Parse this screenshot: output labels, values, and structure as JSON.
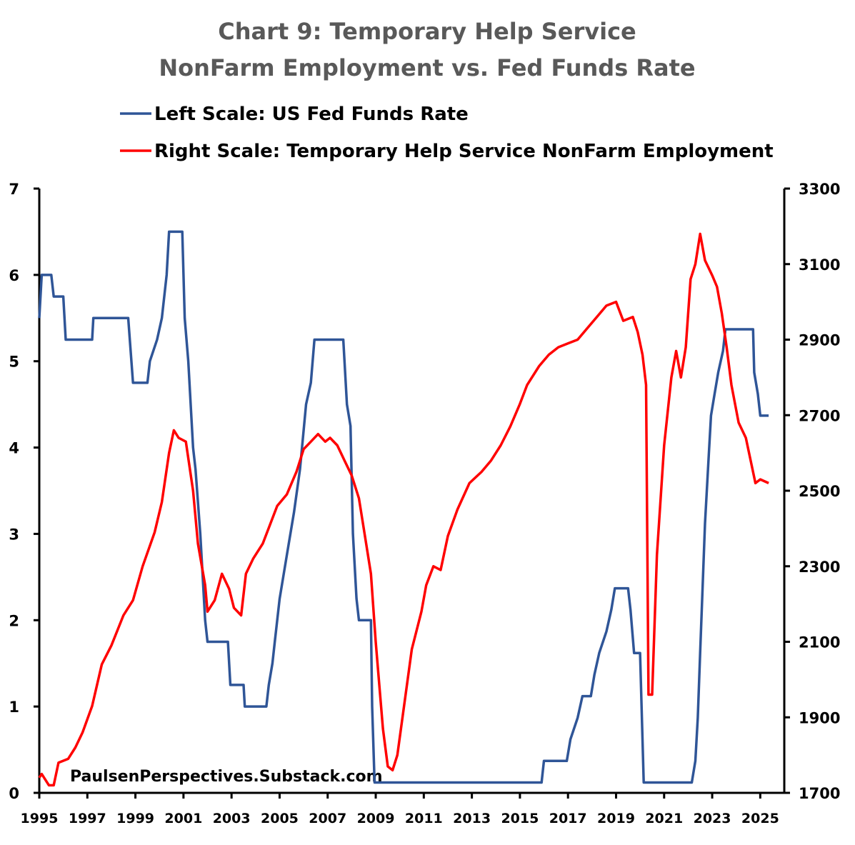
{
  "chart_data": {
    "type": "line",
    "title": [
      "Chart 9: Temporary Help Service",
      "NonFarm Employment vs. Fed Funds Rate"
    ],
    "annotation": "PaulsenPerspectives.Substack.com",
    "xlim": [
      1995,
      2026
    ],
    "xticks": [
      1995,
      1997,
      1999,
      2001,
      2003,
      2005,
      2007,
      2009,
      2011,
      2013,
      2015,
      2017,
      2019,
      2021,
      2023,
      2025
    ],
    "ylim": [
      0,
      7
    ],
    "yticks": [
      0,
      1,
      2,
      3,
      4,
      5,
      6,
      7
    ],
    "y2lim": [
      1700,
      3300
    ],
    "y2ticks": [
      1700,
      1900,
      2100,
      2300,
      2500,
      2700,
      2900,
      3100,
      3300
    ],
    "grid": false,
    "series": [
      {
        "name": "Left Scale: US Fed Funds Rate",
        "color": "#2f5597",
        "axis": "y",
        "x": [
          1995.0,
          1995.1,
          1995.5,
          1995.6,
          1996.0,
          1996.1,
          1997.2,
          1997.25,
          1998.7,
          1998.9,
          1999.5,
          1999.6,
          1999.9,
          2000.1,
          2000.3,
          2000.4,
          2000.95,
          2001.05,
          2001.2,
          2001.4,
          2001.5,
          2001.7,
          2001.9,
          2002.0,
          2002.85,
          2002.95,
          2003.5,
          2003.55,
          2004.45,
          2004.55,
          2004.7,
          2004.8,
          2005.0,
          2005.3,
          2005.6,
          2005.85,
          2006.1,
          2006.3,
          2006.45,
          2007.65,
          2007.8,
          2007.95,
          2008.05,
          2008.2,
          2008.3,
          2008.8,
          2008.85,
          2008.95,
          2015.9,
          2016.0,
          2016.95,
          2017.1,
          2017.4,
          2017.6,
          2017.95,
          2018.1,
          2018.3,
          2018.6,
          2018.8,
          2018.95,
          2019.5,
          2019.6,
          2019.75,
          2020.0,
          2020.15,
          2022.15,
          2022.3,
          2022.4,
          2022.5,
          2022.6,
          2022.7,
          2022.85,
          2022.95,
          2023.1,
          2023.25,
          2023.45,
          2023.55,
          2024.7,
          2024.75,
          2024.9,
          2025.0,
          2025.35
        ],
        "values": [
          5.5,
          6.0,
          6.0,
          5.75,
          5.75,
          5.25,
          5.25,
          5.5,
          5.5,
          4.75,
          4.75,
          5.0,
          5.25,
          5.5,
          6.0,
          6.5,
          6.5,
          5.5,
          5.0,
          4.0,
          3.75,
          3.0,
          2.0,
          1.75,
          1.75,
          1.25,
          1.25,
          1.0,
          1.0,
          1.25,
          1.5,
          1.75,
          2.25,
          2.75,
          3.25,
          3.75,
          4.5,
          4.75,
          5.25,
          5.25,
          4.5,
          4.25,
          3.0,
          2.25,
          2.0,
          2.0,
          1.0,
          0.12,
          0.12,
          0.37,
          0.37,
          0.62,
          0.87,
          1.12,
          1.12,
          1.37,
          1.62,
          1.87,
          2.12,
          2.37,
          2.37,
          2.12,
          1.62,
          1.62,
          0.12,
          0.12,
          0.37,
          0.87,
          1.62,
          2.37,
          3.12,
          3.87,
          4.37,
          4.62,
          4.87,
          5.12,
          5.37,
          5.37,
          4.87,
          4.62,
          4.37,
          4.37
        ]
      },
      {
        "name": "Right Scale: Temporary Help Service NonFarm Employment",
        "color": "#ff0000",
        "axis": "y2",
        "x": [
          1995.0,
          1995.1,
          1995.4,
          1995.6,
          1995.8,
          1996.2,
          1996.5,
          1996.8,
          1997.2,
          1997.6,
          1998.0,
          1998.5,
          1998.9,
          1999.3,
          1999.8,
          2000.1,
          2000.4,
          2000.6,
          2000.8,
          2001.1,
          2001.4,
          2001.6,
          2001.9,
          2002.0,
          2002.3,
          2002.6,
          2002.9,
          2003.1,
          2003.4,
          2003.6,
          2003.9,
          2004.3,
          2004.6,
          2004.9,
          2005.3,
          2005.7,
          2006.0,
          2006.3,
          2006.6,
          2006.9,
          2007.1,
          2007.4,
          2007.7,
          2008.0,
          2008.3,
          2008.6,
          2008.8,
          2009.0,
          2009.3,
          2009.5,
          2009.7,
          2009.9,
          2010.2,
          2010.5,
          2010.9,
          2011.1,
          2011.4,
          2011.7,
          2012.0,
          2012.4,
          2012.9,
          2013.4,
          2013.8,
          2014.2,
          2014.6,
          2015.0,
          2015.3,
          2015.8,
          2016.2,
          2016.6,
          2017.0,
          2017.4,
          2017.8,
          2018.2,
          2018.6,
          2019.0,
          2019.3,
          2019.7,
          2019.9,
          2020.1,
          2020.25,
          2020.35,
          2020.5,
          2020.7,
          2021.0,
          2021.3,
          2021.5,
          2021.7,
          2021.9,
          2022.1,
          2022.3,
          2022.5,
          2022.7,
          2023.0,
          2023.2,
          2023.4,
          2023.6,
          2023.8,
          2024.1,
          2024.4,
          2024.6,
          2024.8,
          2025.0,
          2025.35
        ],
        "values": [
          1740,
          1750,
          1720,
          1720,
          1780,
          1790,
          1820,
          1860,
          1930,
          2040,
          2090,
          2170,
          2210,
          2300,
          2390,
          2470,
          2600,
          2660,
          2640,
          2630,
          2500,
          2360,
          2250,
          2180,
          2210,
          2280,
          2240,
          2190,
          2170,
          2280,
          2320,
          2360,
          2410,
          2460,
          2490,
          2550,
          2610,
          2630,
          2650,
          2630,
          2640,
          2620,
          2580,
          2540,
          2480,
          2360,
          2280,
          2100,
          1870,
          1770,
          1760,
          1800,
          1940,
          2080,
          2180,
          2250,
          2300,
          2290,
          2380,
          2450,
          2520,
          2550,
          2580,
          2620,
          2670,
          2730,
          2780,
          2830,
          2860,
          2880,
          2890,
          2900,
          2930,
          2960,
          2990,
          3000,
          2950,
          2960,
          2920,
          2860,
          2780,
          1960,
          1960,
          2330,
          2620,
          2800,
          2870,
          2800,
          2880,
          3060,
          3100,
          3180,
          3110,
          3070,
          3040,
          2970,
          2880,
          2780,
          2680,
          2640,
          2580,
          2520,
          2530,
          2520
        ]
      }
    ]
  }
}
